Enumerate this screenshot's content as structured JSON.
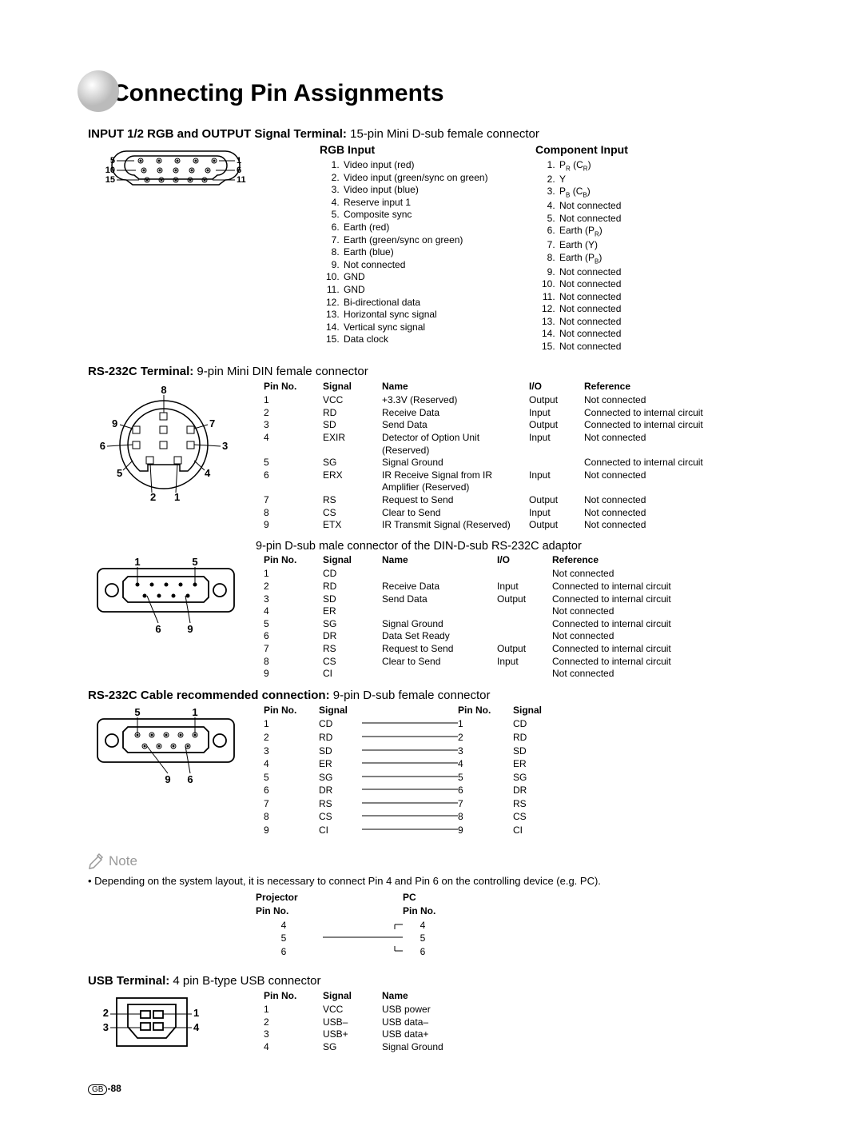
{
  "page_title": "Connecting Pin Assignments",
  "page_number": "-88",
  "page_prefix": "GB",
  "section1": {
    "title_bold": "INPUT 1/2 RGB and OUTPUT Signal Terminal:",
    "title_rest": " 15-pin Mini D-sub female connector",
    "rgb_header": "RGB Input",
    "rgb_items": [
      "Video input (red)",
      "Video input (green/sync on green)",
      "Video input (blue)",
      "Reserve input 1",
      "Composite sync",
      "Earth (red)",
      "Earth (green/sync on green)",
      "Earth (blue)",
      "Not connected",
      "GND",
      "GND",
      "Bi-directional data",
      "Horizontal sync signal",
      "Vertical sync signal",
      "Data clock"
    ],
    "comp_header": "Component Input",
    "comp_items": [
      "P_R (C_R)",
      "Y",
      "P_B (C_B)",
      "Not connected",
      "Not connected",
      "Earth (P_R)",
      "Earth (Y)",
      "Earth (P_B)",
      "Not connected",
      "Not connected",
      "Not connected",
      "Not connected",
      "Not connected",
      "Not connected",
      "Not connected"
    ]
  },
  "section2": {
    "title_bold": "RS-232C Terminal:",
    "title_rest": " 9-pin Mini DIN female connector",
    "headers": [
      "Pin No.",
      "Signal",
      "Name",
      "I/O",
      "Reference"
    ],
    "rows": [
      [
        "1",
        "VCC",
        "+3.3V (Reserved)",
        "Output",
        "Not connected"
      ],
      [
        "2",
        "RD",
        "Receive Data",
        "Input",
        "Connected to internal circuit"
      ],
      [
        "3",
        "SD",
        "Send Data",
        "Output",
        "Connected to internal circuit"
      ],
      [
        "4",
        "EXIR",
        "Detector of Option Unit (Reserved)",
        "Input",
        "Not connected"
      ],
      [
        "5",
        "SG",
        "Signal Ground",
        "",
        "Connected to internal circuit"
      ],
      [
        "6",
        "ERX",
        "IR Receive Signal from IR Amplifier (Reserved)",
        "Input",
        "Not connected"
      ],
      [
        "7",
        "RS",
        "Request to Send",
        "Output",
        "Not connected"
      ],
      [
        "8",
        "CS",
        "Clear to Send",
        "Input",
        "Not connected"
      ],
      [
        "9",
        "ETX",
        "IR Transmit Signal (Reserved)",
        "Output",
        "Not connected"
      ]
    ]
  },
  "adaptor": {
    "title": "9-pin D-sub male connector of the DIN-D-sub RS-232C adaptor",
    "headers": [
      "Pin No.",
      "Signal",
      "Name",
      "I/O",
      "Reference"
    ],
    "rows": [
      [
        "1",
        "CD",
        "",
        "",
        "Not connected"
      ],
      [
        "2",
        "RD",
        "Receive Data",
        "Input",
        "Connected to internal circuit"
      ],
      [
        "3",
        "SD",
        "Send Data",
        "Output",
        "Connected to internal circuit"
      ],
      [
        "4",
        "ER",
        "",
        "",
        "Not connected"
      ],
      [
        "5",
        "SG",
        "Signal Ground",
        "",
        "Connected to internal circuit"
      ],
      [
        "6",
        "DR",
        "Data Set Ready",
        "",
        "Not connected"
      ],
      [
        "7",
        "RS",
        "Request to Send",
        "Output",
        "Connected to internal circuit"
      ],
      [
        "8",
        "CS",
        "Clear to Send",
        "Input",
        "Connected to internal circuit"
      ],
      [
        "9",
        "CI",
        "",
        "",
        "Not connected"
      ]
    ]
  },
  "cable": {
    "title_bold": "RS-232C Cable recommended connection:",
    "title_rest": " 9-pin D-sub female connector",
    "headers": [
      "Pin No.",
      "Signal",
      "Pin No.",
      "Signal"
    ],
    "rows": [
      [
        "1",
        "CD",
        "1",
        "CD"
      ],
      [
        "2",
        "RD",
        "2",
        "RD"
      ],
      [
        "3",
        "SD",
        "3",
        "SD"
      ],
      [
        "4",
        "ER",
        "4",
        "ER"
      ],
      [
        "5",
        "SG",
        "5",
        "SG"
      ],
      [
        "6",
        "DR",
        "6",
        "DR"
      ],
      [
        "7",
        "RS",
        "7",
        "RS"
      ],
      [
        "8",
        "CS",
        "8",
        "CS"
      ],
      [
        "9",
        "CI",
        "9",
        "CI"
      ]
    ]
  },
  "note": {
    "label": "Note",
    "text": "• Depending on the system layout, it is necessary to connect Pin 4 and Pin 6 on the controlling device (e.g. PC).",
    "proj_header": "Projector",
    "pc_header": "PC",
    "pin_label": "Pin No.",
    "rows": [
      [
        "4",
        "4"
      ],
      [
        "5",
        "5"
      ],
      [
        "6",
        "6"
      ]
    ]
  },
  "usb": {
    "title_bold": "USB Terminal:",
    "title_rest": " 4 pin B-type USB connector",
    "headers": [
      "Pin No.",
      "Signal",
      "Name"
    ],
    "rows": [
      [
        "1",
        "VCC",
        "USB power"
      ],
      [
        "2",
        "USB–",
        "USB data–"
      ],
      [
        "3",
        "USB+",
        "USB data+"
      ],
      [
        "4",
        "SG",
        "Signal Ground"
      ]
    ]
  }
}
